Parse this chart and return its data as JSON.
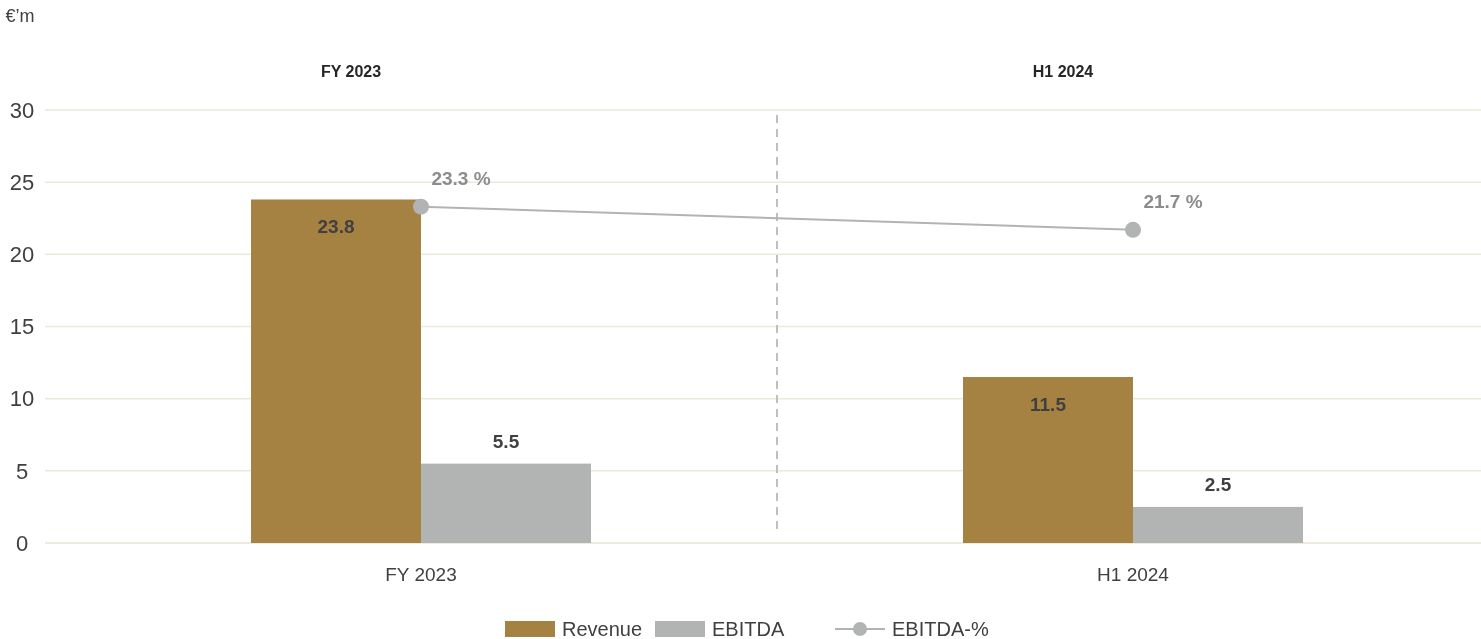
{
  "chart_data": {
    "type": "bar",
    "ylabel": "€’m",
    "categories": [
      "FY 2023",
      "H1 2024"
    ],
    "series": [
      {
        "name": "Revenue",
        "color": "#a68242",
        "values": [
          23.8,
          11.5
        ],
        "value_labels": [
          "23.8",
          "11.5"
        ]
      },
      {
        "name": "EBITDA",
        "color": "#b2b3b3",
        "values": [
          5.5,
          2.5
        ],
        "value_labels": [
          "5.5",
          "2.5"
        ]
      },
      {
        "name": "EBITDA-%",
        "type": "line",
        "color": "#b2b3b3",
        "values": [
          23.3,
          21.7
        ],
        "value_labels": [
          "23.3 %",
          "21.7 %"
        ],
        "marker": "circle"
      }
    ],
    "annotations": [
      "FY 2023",
      "H1 2024"
    ],
    "ylim": [
      0,
      30
    ],
    "yticks": [
      0,
      5,
      10,
      15,
      20,
      25,
      30
    ],
    "grid": "y",
    "legend": "bottom"
  }
}
